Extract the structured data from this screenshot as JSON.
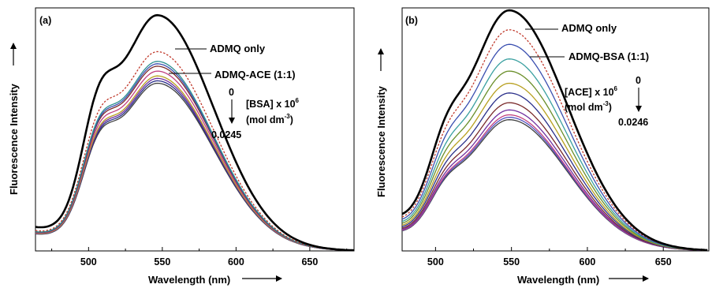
{
  "chart_data": [
    {
      "type": "line",
      "panel_label": "(a)",
      "xlabel": "Wavelength (nm)",
      "ylabel": "Fluorescence Intensity",
      "xlim": [
        464,
        680
      ],
      "ylim": [
        0,
        1.0
      ],
      "x_ticks": [
        500,
        550,
        600,
        650
      ],
      "y_ticks_shown": false,
      "peak_wavelength": 547,
      "series": [
        {
          "name": "ADMQ only",
          "color": "#000000",
          "width": 2.6,
          "dash": false,
          "peak": 0.97
        },
        {
          "name": "ADMQ-ACE (1:1)",
          "color": "#c0392b",
          "width": 1.3,
          "dash": true,
          "peak": 0.82
        },
        {
          "color": "#2c8f8f",
          "width": 1.3,
          "peak": 0.78
        },
        {
          "color": "#3a4fb0",
          "width": 1.3,
          "peak": 0.77
        },
        {
          "color": "#7a2b2b",
          "width": 1.3,
          "peak": 0.76
        },
        {
          "color": "#c04080",
          "width": 1.3,
          "peak": 0.74
        },
        {
          "color": "#b8a020",
          "width": 1.3,
          "peak": 0.72
        },
        {
          "color": "#7030a0",
          "width": 1.3,
          "peak": 0.71
        },
        {
          "color": "#2a2f8a",
          "width": 1.3,
          "peak": 0.7
        },
        {
          "color": "#404040",
          "width": 1.3,
          "peak": 0.69
        }
      ],
      "annotations": {
        "only_label": "ADMQ only",
        "complex_label": "ADMQ-ACE (1:1)",
        "conc_start": "0",
        "conc_label": "[BSA] x 10",
        "conc_exp": "6",
        "unit_label": "(mol dm",
        "unit_exp": "-3",
        "unit_close": ")",
        "conc_end": "0.0245"
      }
    },
    {
      "type": "line",
      "panel_label": "(b)",
      "xlabel": "Wavelength (nm)",
      "ylabel": "Fluorescence Intensity",
      "xlim": [
        478,
        680
      ],
      "ylim": [
        0,
        1.0
      ],
      "x_ticks": [
        500,
        550,
        600,
        650
      ],
      "y_ticks_shown": false,
      "peak_wavelength": 549,
      "series": [
        {
          "name": "ADMQ only",
          "color": "#000000",
          "width": 2.6,
          "dash": false,
          "peak": 0.99
        },
        {
          "name": "ADMQ-BSA (1:1)",
          "color": "#c0392b",
          "width": 1.3,
          "dash": true,
          "peak": 0.91
        },
        {
          "color": "#3a4fb0",
          "width": 1.3,
          "peak": 0.85
        },
        {
          "color": "#3aa0a0",
          "width": 1.3,
          "peak": 0.79
        },
        {
          "color": "#6a8f2a",
          "width": 1.3,
          "peak": 0.74
        },
        {
          "color": "#b8a020",
          "width": 1.3,
          "peak": 0.69
        },
        {
          "color": "#2a2f8a",
          "width": 1.3,
          "peak": 0.65
        },
        {
          "color": "#7a2b2b",
          "width": 1.3,
          "peak": 0.61
        },
        {
          "color": "#7030a0",
          "width": 1.3,
          "peak": 0.58
        },
        {
          "color": "#c04080",
          "width": 1.3,
          "peak": 0.56
        },
        {
          "color": "#5050c0",
          "width": 1.3,
          "peak": 0.55
        },
        {
          "color": "#404040",
          "width": 1.3,
          "peak": 0.54
        }
      ],
      "annotations": {
        "only_label": "ADMQ only",
        "complex_label": "ADMQ-BSA (1:1)",
        "conc_start": "0",
        "conc_label": "[ACE] x 10",
        "conc_exp": "6",
        "unit_label": "(mol dm",
        "unit_exp": "-3",
        "unit_close": ")",
        "conc_end": "0.0246"
      }
    }
  ]
}
